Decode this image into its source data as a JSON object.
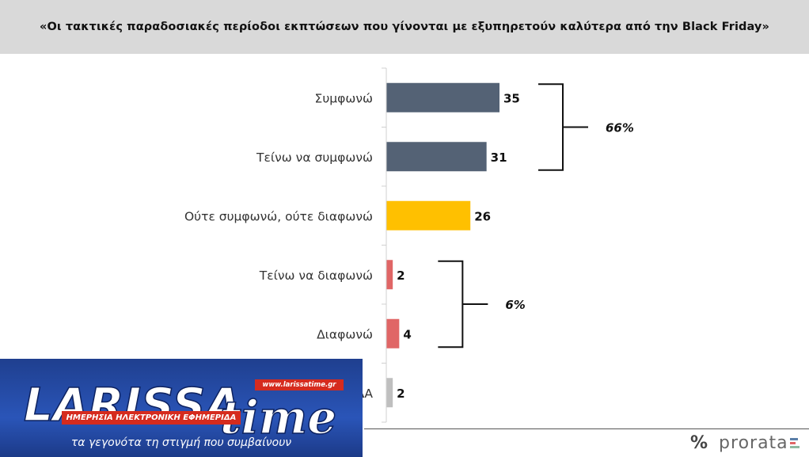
{
  "chart_data": {
    "type": "bar",
    "orientation": "horizontal",
    "title": "«Οι τακτικές παραδοσιακές περίοδοι εκπτώσεων που γίνονται με εξυπηρετούν καλύτερα από την Black Friday»",
    "categories": [
      "Συμφωνώ",
      "Τείνω να συμφωνώ",
      "Ούτε συμφωνώ, ούτε διαφωνώ",
      "Τείνω να διαφωνώ",
      "Διαφωνώ",
      "ΔΓ/ΔΑ"
    ],
    "values": [
      35,
      31,
      26,
      2,
      4,
      2
    ],
    "value_labels": [
      "35",
      "31",
      "26",
      "2",
      "4",
      "2"
    ],
    "colors": [
      "#546275",
      "#546275",
      "#ffc000",
      "#e06666",
      "#e06666",
      "#bfbfbf"
    ],
    "groups": [
      {
        "label": "66%",
        "from": 0,
        "to": 1
      },
      {
        "label": "6%",
        "from": 3,
        "to": 4
      }
    ],
    "xlim": [
      0,
      100
    ],
    "grid": false,
    "legend": "none"
  },
  "overlay": {
    "logo_larissa": "LARISSA",
    "logo_time": "time",
    "url": "www.larissatime.gr",
    "subtitle": "ΗΜΕΡΗΣΙΑ ΗΛΕΚΤΡΟΝΙΚΗ ΕΦΗΜΕΡΙΔΑ",
    "tagline": "τα γεγονότα τη στιγμή που συμβαίνουν"
  },
  "brand": {
    "symbol": "%",
    "name": "prorata",
    "bar_colors": [
      "#5b7fa8",
      "#e06666",
      "#8fb8a0"
    ]
  }
}
